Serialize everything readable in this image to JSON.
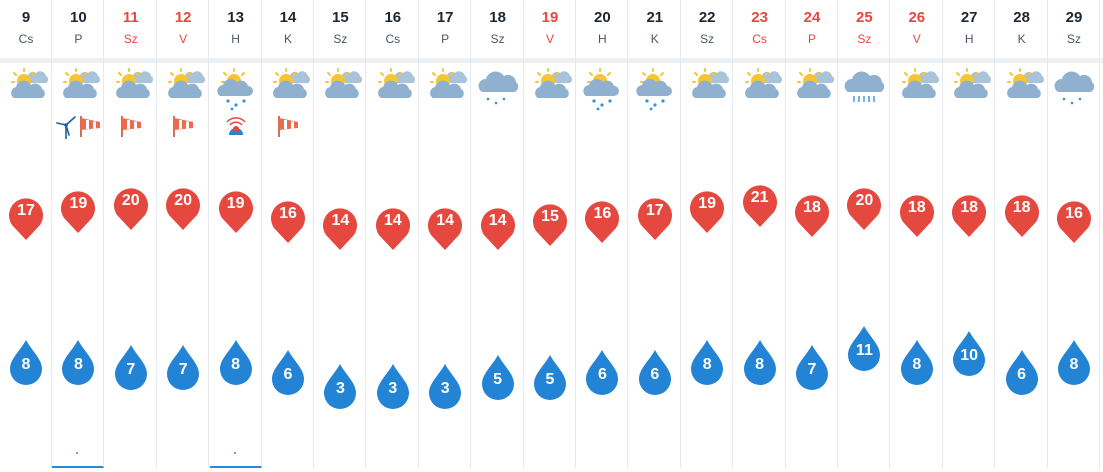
{
  "colors": {
    "max_temp": "#e5483e",
    "min_temp": "#2384d6",
    "weekend_text": "#e5483e",
    "text": "#1d2633"
  },
  "temp_scale": {
    "min": 3,
    "max": 21
  },
  "days": [
    {
      "date": "9",
      "dow": "Cs",
      "weekend": false,
      "icon": "partly-cloudy-icon",
      "max": "17",
      "min": "8",
      "alerts": [],
      "selected": false
    },
    {
      "date": "10",
      "dow": "P",
      "weekend": false,
      "icon": "partly-cloudy-icon",
      "max": "19",
      "min": "8",
      "alerts": [
        "wind-turbine-icon",
        "windsock-icon"
      ],
      "selected": true
    },
    {
      "date": "11",
      "dow": "Sz",
      "weekend": true,
      "icon": "partly-cloudy-icon",
      "max": "20",
      "min": "7",
      "alerts": [
        "windsock-icon"
      ],
      "selected": false
    },
    {
      "date": "12",
      "dow": "V",
      "weekend": true,
      "icon": "partly-cloudy-icon",
      "max": "20",
      "min": "7",
      "alerts": [
        "windsock-icon"
      ],
      "selected": false
    },
    {
      "date": "13",
      "dow": "H",
      "weekend": false,
      "icon": "sun-cloud-rain-icon",
      "max": "19",
      "min": "8",
      "alerts": [
        "storm-alert-icon"
      ],
      "selected": true
    },
    {
      "date": "14",
      "dow": "K",
      "weekend": false,
      "icon": "partly-cloudy-icon",
      "max": "16",
      "min": "6",
      "alerts": [
        "windsock-icon"
      ],
      "selected": false
    },
    {
      "date": "15",
      "dow": "Sz",
      "weekend": false,
      "icon": "partly-cloudy-icon",
      "max": "14",
      "min": "3",
      "alerts": [],
      "selected": false
    },
    {
      "date": "16",
      "dow": "Cs",
      "weekend": false,
      "icon": "partly-cloudy-icon",
      "max": "14",
      "min": "3",
      "alerts": [],
      "selected": false
    },
    {
      "date": "17",
      "dow": "P",
      "weekend": false,
      "icon": "partly-cloudy-icon",
      "max": "14",
      "min": "3",
      "alerts": [],
      "selected": false
    },
    {
      "date": "18",
      "dow": "Sz",
      "weekend": false,
      "icon": "cloud-drizzle-icon",
      "max": "14",
      "min": "5",
      "alerts": [],
      "selected": false
    },
    {
      "date": "19",
      "dow": "V",
      "weekend": true,
      "icon": "partly-cloudy-icon",
      "max": "15",
      "min": "5",
      "alerts": [],
      "selected": false
    },
    {
      "date": "20",
      "dow": "H",
      "weekend": false,
      "icon": "sun-cloud-rain-icon",
      "max": "16",
      "min": "6",
      "alerts": [],
      "selected": false
    },
    {
      "date": "21",
      "dow": "K",
      "weekend": false,
      "icon": "sun-cloud-rain-icon",
      "max": "17",
      "min": "6",
      "alerts": [],
      "selected": false
    },
    {
      "date": "22",
      "dow": "Sz",
      "weekend": false,
      "icon": "partly-cloudy-icon",
      "max": "19",
      "min": "8",
      "alerts": [],
      "selected": false
    },
    {
      "date": "23",
      "dow": "Cs",
      "weekend": true,
      "icon": "partly-cloudy-icon",
      "max": "21",
      "min": "8",
      "alerts": [],
      "selected": false
    },
    {
      "date": "24",
      "dow": "P",
      "weekend": true,
      "icon": "partly-cloudy-icon",
      "max": "18",
      "min": "7",
      "alerts": [],
      "selected": false
    },
    {
      "date": "25",
      "dow": "Sz",
      "weekend": true,
      "icon": "cloud-rain-icon",
      "max": "20",
      "min": "11",
      "alerts": [],
      "selected": false
    },
    {
      "date": "26",
      "dow": "V",
      "weekend": true,
      "icon": "partly-cloudy-icon",
      "max": "18",
      "min": "8",
      "alerts": [],
      "selected": false
    },
    {
      "date": "27",
      "dow": "H",
      "weekend": false,
      "icon": "partly-cloudy-icon",
      "max": "18",
      "min": "10",
      "alerts": [],
      "selected": false
    },
    {
      "date": "28",
      "dow": "K",
      "weekend": false,
      "icon": "partly-cloudy-icon",
      "max": "18",
      "min": "6",
      "alerts": [],
      "selected": false
    },
    {
      "date": "29",
      "dow": "Sz",
      "weekend": false,
      "icon": "cloud-drizzle-icon",
      "max": "16",
      "min": "8",
      "alerts": [],
      "selected": false
    }
  ]
}
